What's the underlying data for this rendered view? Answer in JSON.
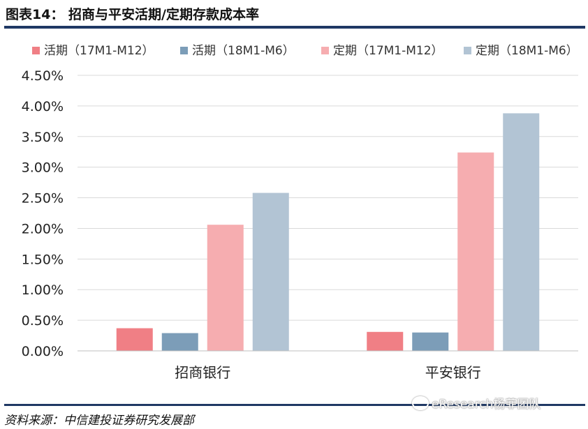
{
  "header": {
    "title": "图表14： 招商与平安活期/定期存款成本率"
  },
  "footer": {
    "source": "资料来源：中信建投证券研究发展部"
  },
  "watermark": {
    "text": "eResearch杨菲团队",
    "icon": "wechat-icon"
  },
  "chart_data": {
    "type": "bar",
    "categories": [
      "招商银行",
      "平安银行"
    ],
    "series": [
      {
        "name": "活期（17M1-M12）",
        "color": "#f07f85",
        "values": [
          0.37,
          0.31
        ]
      },
      {
        "name": "活期（18M1-M6）",
        "color": "#7c9db8",
        "values": [
          0.29,
          0.3
        ]
      },
      {
        "name": "定期（17M1-M12）",
        "color": "#f6adb0",
        "values": [
          2.06,
          3.24
        ]
      },
      {
        "name": "定期（18M1-M6）",
        "color": "#b2c4d4",
        "values": [
          2.58,
          3.88
        ]
      }
    ],
    "y_ticks": [
      "0.00%",
      "0.50%",
      "1.00%",
      "1.50%",
      "2.00%",
      "2.50%",
      "3.00%",
      "3.50%",
      "4.00%",
      "4.50%"
    ],
    "ylim": [
      0,
      4.5
    ],
    "grid": true,
    "legend_position": "top"
  }
}
